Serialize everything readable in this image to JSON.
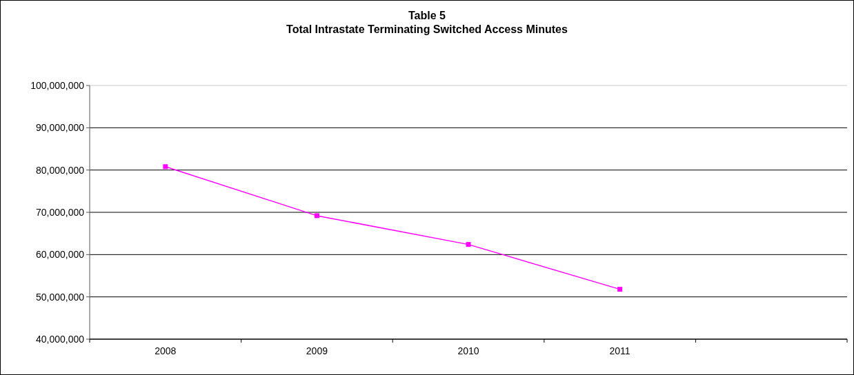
{
  "chart_data": {
    "type": "line",
    "title": "Table 5",
    "subtitle": "Total Intrastate Terminating Switched Access Minutes",
    "categories": [
      "2008",
      "2009",
      "2010",
      "2011",
      null
    ],
    "series": [
      {
        "color": "#ff00ff",
        "values": [
          80800000,
          69200000,
          62400000,
          51800000,
          null
        ]
      }
    ],
    "ylim": [
      40000000,
      100000000
    ],
    "yticks": [
      {
        "value": 40000000,
        "label": "40,000,000"
      },
      {
        "value": 50000000,
        "label": "50,000,000"
      },
      {
        "value": 60000000,
        "label": "60,000,000"
      },
      {
        "value": 70000000,
        "label": "70,000,000"
      },
      {
        "value": 80000000,
        "label": "80,000,000"
      },
      {
        "value": 90000000,
        "label": "90,000,000"
      },
      {
        "value": 100000000,
        "label": "100,000,000"
      }
    ],
    "grid": "y",
    "marker": "square"
  }
}
